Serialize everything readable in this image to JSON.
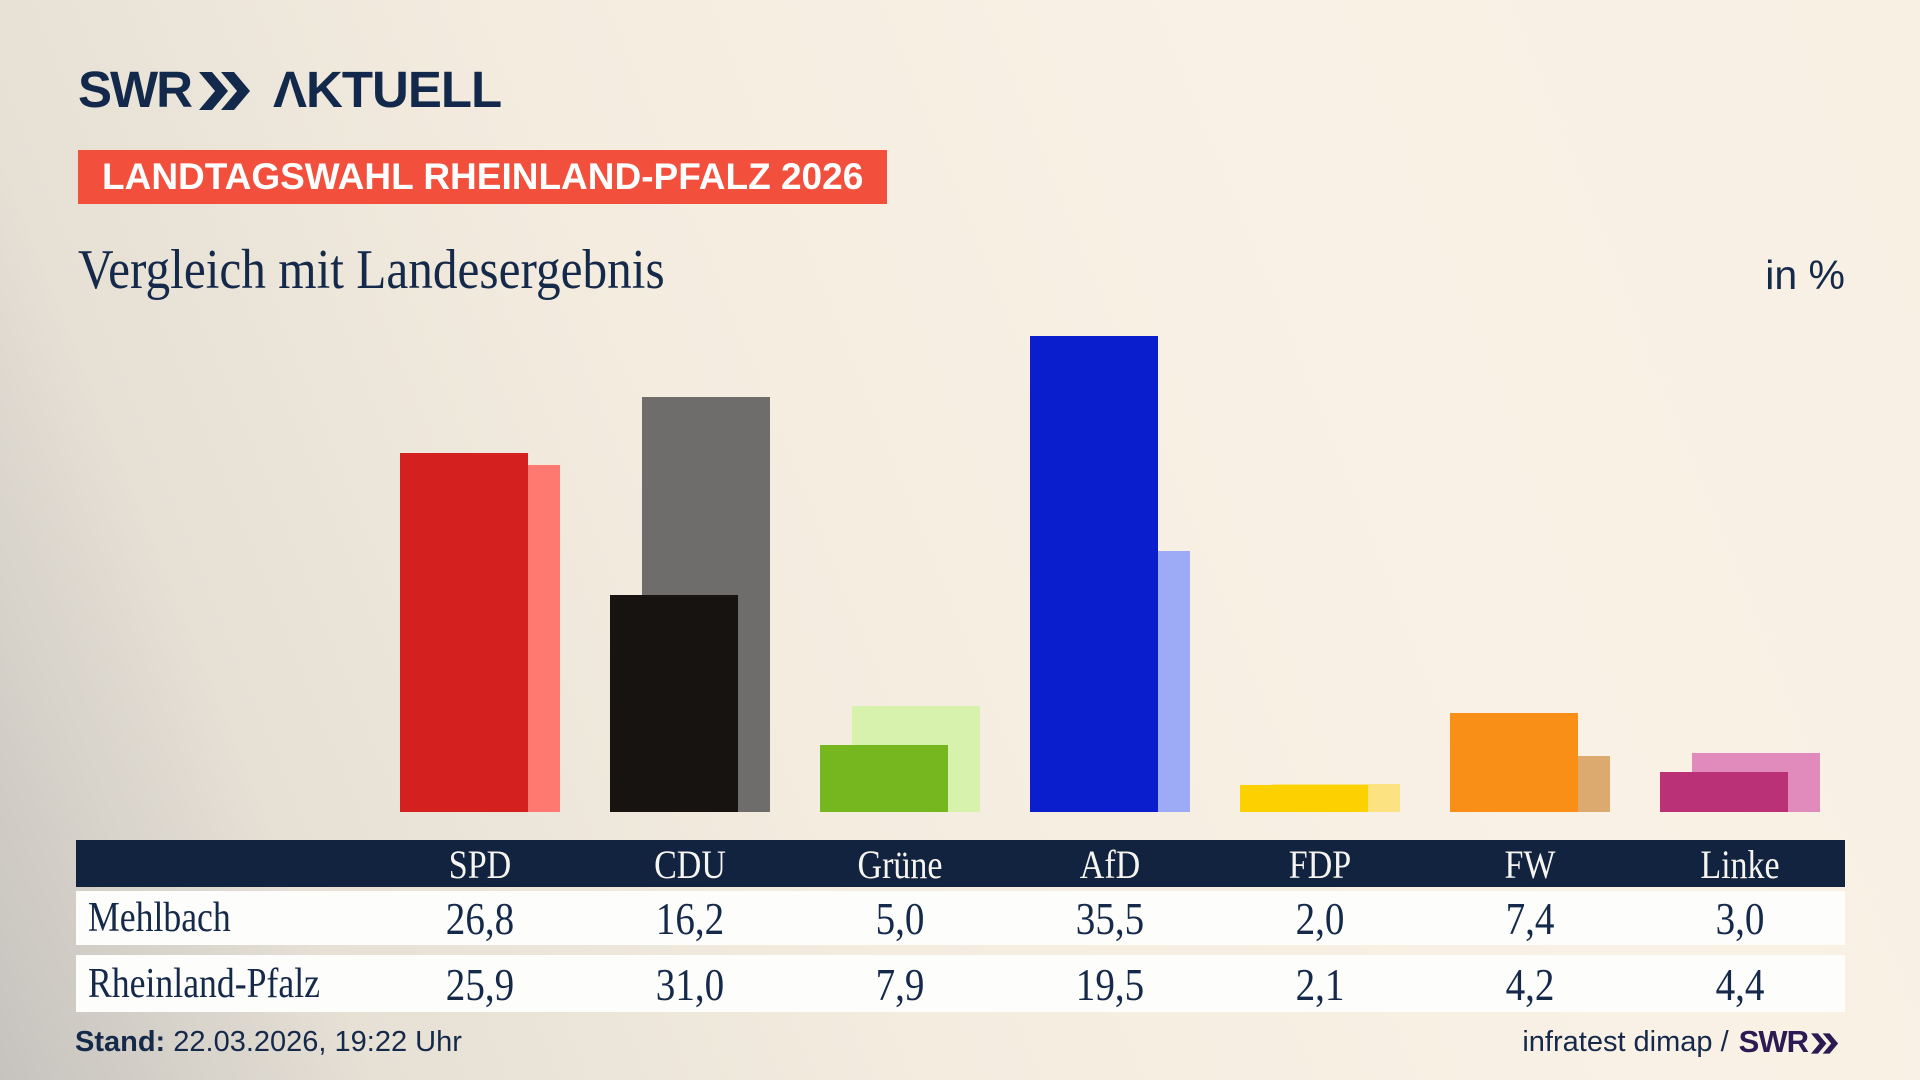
{
  "brand": {
    "logo_swr": "SWR",
    "logo_aktuell": "ΛKTUELL"
  },
  "badge": {
    "label": "LANDTAGSWAHL RHEINLAND-PFALZ 2026"
  },
  "title": "Vergleich mit Landesergebnis",
  "unit_label": "in %",
  "chart_data": {
    "type": "bar",
    "categories": [
      "SPD",
      "CDU",
      "Grüne",
      "AfD",
      "FDP",
      "FW",
      "Linke"
    ],
    "series": [
      {
        "name": "Mehlbach",
        "role": "front",
        "values": [
          26.8,
          16.2,
          5.0,
          35.5,
          2.0,
          7.4,
          3.0
        ]
      },
      {
        "name": "Rheinland-Pfalz",
        "role": "back",
        "values": [
          25.9,
          31.0,
          7.9,
          19.5,
          2.1,
          4.2,
          4.4
        ]
      }
    ],
    "bar_colors": [
      {
        "party": "SPD",
        "front": "#d42120",
        "back": "#fe7a70"
      },
      {
        "party": "CDU",
        "front": "#171310",
        "back": "#6e6d6b"
      },
      {
        "party": "Grüne",
        "front": "#76b61e",
        "back": "#d6f2ad"
      },
      {
        "party": "AfD",
        "front": "#0a1ecd",
        "back": "#9dabf7"
      },
      {
        "party": "FDP",
        "front": "#fdd101",
        "back": "#fde281"
      },
      {
        "party": "FW",
        "front": "#f98f17",
        "back": "#dca96f"
      },
      {
        "party": "Linke",
        "front": "#ba3177",
        "back": "#e08bbb"
      }
    ],
    "title": "Vergleich mit Landesergebnis",
    "xlabel": "",
    "ylabel": "in %",
    "ylim": [
      0,
      38
    ],
    "grid": false,
    "legend": "table-below"
  },
  "table": {
    "header": [
      "SPD",
      "CDU",
      "Grüne",
      "AfD",
      "FDP",
      "FW",
      "Linke"
    ],
    "rows": [
      {
        "label": "Mehlbach",
        "values": [
          "26,8",
          "16,2",
          "5,0",
          "35,5",
          "2,0",
          "7,4",
          "3,0"
        ]
      },
      {
        "label": "Rheinland-Pfalz",
        "values": [
          "25,9",
          "31,0",
          "7,9",
          "19,5",
          "2,1",
          "4,2",
          "4,4"
        ]
      }
    ]
  },
  "footer": {
    "stand_label": "Stand:",
    "stand_value": " 22.03.2026, 19:22 Uhr",
    "source_text": "infratest dimap /",
    "source_brand": "SWR"
  },
  "colors": {
    "background_cream": "#f8f0e4",
    "background_shadow": "#c6c3be",
    "navy_text": "#15294a",
    "table_header_navy": "#12233f",
    "badge_red": "#f2503c",
    "footer_brand_purple": "#2c1a52",
    "row_white": "#fdfdfc"
  }
}
